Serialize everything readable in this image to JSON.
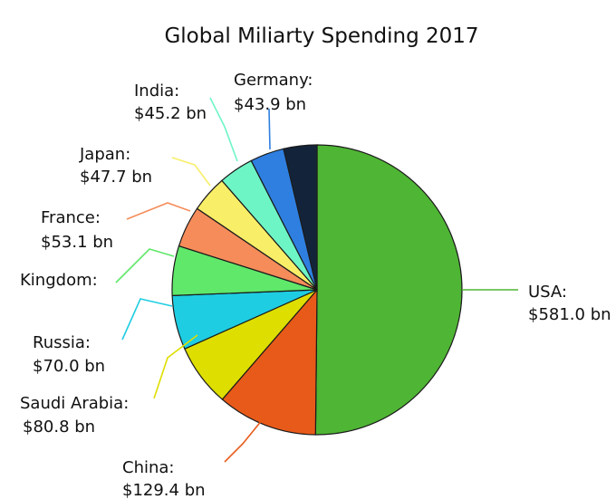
{
  "chart_data": {
    "type": "pie",
    "title": "Global Miliarty Spending 2017",
    "slices": [
      {
        "name": "USA:",
        "value": 581.0,
        "value_label": "$581.0 bn",
        "color": "#4fb534"
      },
      {
        "name": "China:",
        "value": 129.4,
        "value_label": "$129.4 bn",
        "color": "#e85a19"
      },
      {
        "name": "Saudi Arabia:",
        "value": 80.8,
        "value_label": "$80.8 bn",
        "color": "#dede00"
      },
      {
        "name": "Russia:",
        "value": 70.0,
        "value_label": "$70.0 bn",
        "color": "#1ecde2"
      },
      {
        "name": "Kingdom:",
        "value": 64.0,
        "value_label": "",
        "color": "#5fe86a"
      },
      {
        "name": "France:",
        "value": 53.1,
        "value_label": "$53.1 bn",
        "color": "#f58c5a"
      },
      {
        "name": "Japan:",
        "value": 47.7,
        "value_label": "$47.7 bn",
        "color": "#f8ee68"
      },
      {
        "name": "India:",
        "value": 45.2,
        "value_label": "$45.2 bn",
        "color": "#6ef5c5"
      },
      {
        "name": "Germany:",
        "value": 43.9,
        "value_label": "$43.9 bn",
        "color": "#2f7fe0"
      },
      {
        "name": "",
        "value": 43.0,
        "value_label": "",
        "color": "#13243a"
      }
    ],
    "start_angle": "12 o'clock",
    "direction": "clockwise",
    "legend": "none"
  }
}
